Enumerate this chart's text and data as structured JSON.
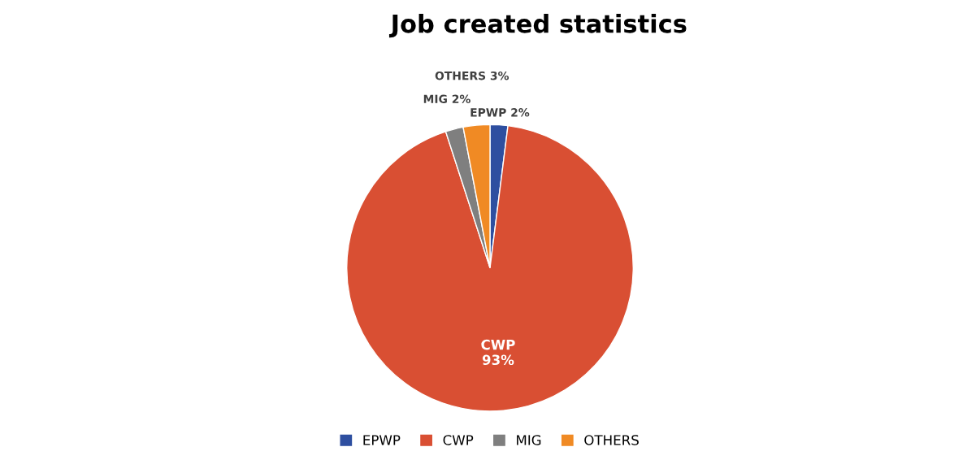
{
  "chart_data": {
    "type": "pie",
    "title": "Job created statistics",
    "categories": [
      "EPWP",
      "CWP",
      "MIG",
      "OTHERS"
    ],
    "values": [
      2,
      93,
      2,
      3
    ],
    "value_labels": [
      "2%",
      "93%",
      "2%",
      "3%"
    ],
    "colors": [
      "#2e4fa0",
      "#d94f33",
      "#7f7f7f",
      "#f08a24"
    ],
    "legend": "bottom"
  }
}
